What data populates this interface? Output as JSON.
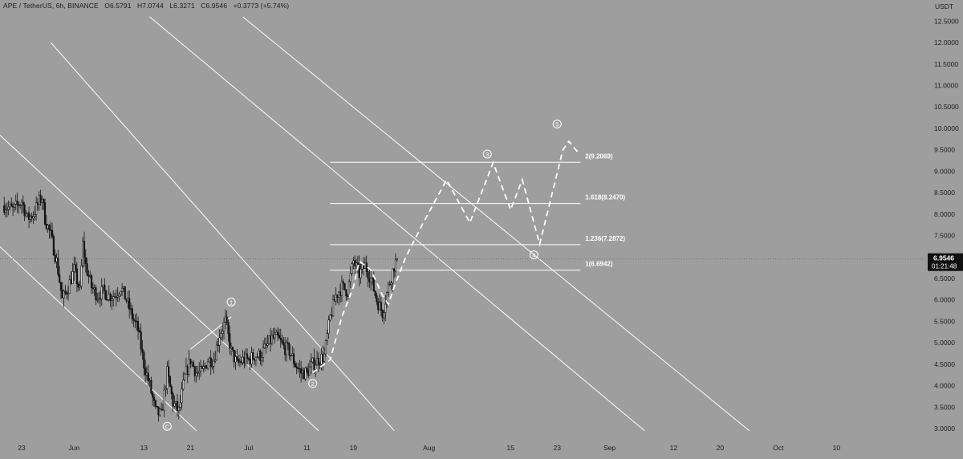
{
  "header": {
    "symbol": "APE / TetherUS, 6h, BINANCE",
    "open": "O6.5791",
    "high": "H7.0744",
    "low": "L6.3271",
    "close": "C6.9546",
    "change": "+0.3773 (+5.74%)"
  },
  "chart_data": {
    "type": "candlestick",
    "currency_label": "USDT",
    "y_ticks": [
      "12.5000",
      "12.0000",
      "11.5000",
      "11.0000",
      "10.5000",
      "10.0000",
      "9.5000",
      "9.0000",
      "8.5000",
      "8.0000",
      "7.5000",
      "7.0000",
      "6.5000",
      "6.0000",
      "5.5000",
      "5.0000",
      "4.5000",
      "4.0000",
      "3.5000",
      "3.0000"
    ],
    "ylim": [
      2.9,
      12.75
    ],
    "x_ticks": [
      {
        "label": "23",
        "day": 0
      },
      {
        "label": "Jun",
        "day": 9
      },
      {
        "label": "13",
        "day": 21
      },
      {
        "label": "21",
        "day": 29
      },
      {
        "label": "Jul",
        "day": 39
      },
      {
        "label": "11",
        "day": 49
      },
      {
        "label": "19",
        "day": 57
      },
      {
        "label": "Aug",
        "day": 70
      },
      {
        "label": "15",
        "day": 84
      },
      {
        "label": "23",
        "day": 92
      },
      {
        "label": "Sep",
        "day": 101
      },
      {
        "label": "12",
        "day": 112
      },
      {
        "label": "20",
        "day": 120
      },
      {
        "label": "Oct",
        "day": 130
      },
      {
        "label": "10",
        "day": 140
      }
    ],
    "x_axis_start": "May 23",
    "last_price": "6.9546",
    "countdown": "01:21:48",
    "price_path": [
      [
        -3,
        8.2
      ],
      [
        -1.5,
        8.1
      ],
      [
        0,
        8.3
      ],
      [
        1,
        7.9
      ],
      [
        2,
        8.0
      ],
      [
        3,
        8.3
      ],
      [
        3.5,
        8.4
      ],
      [
        4,
        7.9
      ],
      [
        5,
        7.5
      ],
      [
        6,
        6.9
      ],
      [
        7,
        6.0
      ],
      [
        8,
        6.3
      ],
      [
        9,
        6.7
      ],
      [
        10,
        6.2
      ],
      [
        10.5,
        7.3
      ],
      [
        11,
        6.8
      ],
      [
        12,
        6.3
      ],
      [
        13,
        6.1
      ],
      [
        14,
        6.2
      ],
      [
        15,
        6.1
      ],
      [
        16,
        6.1
      ],
      [
        17,
        6.3
      ],
      [
        18,
        6.0
      ],
      [
        19,
        5.6
      ],
      [
        20,
        5.3
      ],
      [
        21,
        4.5
      ],
      [
        22,
        4.0
      ],
      [
        23,
        3.4
      ],
      [
        24,
        3.3
      ],
      [
        25,
        4.3
      ],
      [
        26,
        3.6
      ],
      [
        27,
        3.4
      ],
      [
        28,
        4.2
      ],
      [
        29,
        4.6
      ],
      [
        30,
        4.3
      ],
      [
        31,
        4.3
      ],
      [
        32,
        4.6
      ],
      [
        33,
        4.6
      ],
      [
        34,
        5.2
      ],
      [
        35,
        5.5
      ],
      [
        36,
        4.8
      ],
      [
        37,
        4.5
      ],
      [
        38,
        4.6
      ],
      [
        39,
        4.6
      ],
      [
        40,
        4.7
      ],
      [
        41,
        4.7
      ],
      [
        42,
        4.9
      ],
      [
        43,
        5.1
      ],
      [
        44,
        5.1
      ],
      [
        45,
        4.9
      ],
      [
        46,
        4.8
      ],
      [
        47,
        4.5
      ],
      [
        48,
        4.3
      ],
      [
        49,
        4.3
      ],
      [
        50,
        4.5
      ],
      [
        51,
        4.6
      ],
      [
        52,
        4.7
      ],
      [
        53,
        5.6
      ],
      [
        54,
        6.1
      ],
      [
        55,
        6.3
      ],
      [
        56,
        6.2
      ],
      [
        57,
        6.9
      ],
      [
        58,
        6.6
      ],
      [
        59,
        6.8
      ],
      [
        60,
        6.5
      ],
      [
        61,
        6.0
      ],
      [
        62,
        5.7
      ],
      [
        63,
        6.3
      ],
      [
        64,
        6.8
      ],
      [
        64.5,
        6.95
      ]
    ],
    "channel_lines": [
      {
        "name": "channel-line-1",
        "from": [
          -5,
          7.4
        ],
        "to": [
          30,
          2.95
        ]
      },
      {
        "name": "channel-line-2",
        "from": [
          -5,
          10.0
        ],
        "to": [
          51,
          2.95
        ]
      },
      {
        "name": "channel-line-3",
        "from": [
          5,
          12.0
        ],
        "to": [
          64,
          2.95
        ]
      },
      {
        "name": "channel-line-4",
        "from": [
          22,
          12.6
        ],
        "to": [
          107,
          2.95
        ]
      },
      {
        "name": "channel-line-5",
        "from": [
          38,
          12.6
        ],
        "to": [
          125,
          2.95
        ]
      },
      {
        "name": "wave-1-left-line",
        "from": [
          29,
          4.85
        ],
        "to": [
          36,
          5.6
        ]
      }
    ],
    "fib_levels": [
      {
        "ratio": "2",
        "value": "9.2069",
        "price": 9.2069
      },
      {
        "ratio": "1.618",
        "value": "8.2470",
        "price": 8.247
      },
      {
        "ratio": "1.236",
        "value": "7.2872",
        "price": 7.2872
      },
      {
        "ratio": "1",
        "value": "6.6942",
        "price": 6.6942
      }
    ],
    "fib_range": [
      53,
      96
    ],
    "projection_path": [
      [
        50,
        4.3
      ],
      [
        53,
        4.6
      ],
      [
        55,
        5.6
      ],
      [
        57,
        6.3
      ],
      [
        58,
        6.9
      ],
      [
        60,
        6.7
      ],
      [
        62,
        6.1
      ],
      [
        63,
        5.9
      ],
      [
        64,
        6.3
      ],
      [
        66,
        7.0
      ],
      [
        69,
        7.8
      ],
      [
        73,
        8.8
      ],
      [
        77,
        7.8
      ],
      [
        81,
        9.2
      ],
      [
        84,
        8.1
      ],
      [
        86,
        8.8
      ],
      [
        89,
        7.3
      ],
      [
        93,
        9.5
      ],
      [
        94,
        9.7
      ],
      [
        95.5,
        9.45
      ]
    ],
    "wave_labels": [
      {
        "label": "1",
        "day": 36,
        "price": 5.95
      },
      {
        "label": "2",
        "day": 50,
        "price": 4.05
      },
      {
        "label": "3",
        "day": 80,
        "price": 9.4
      },
      {
        "label": "4",
        "day": 88,
        "price": 7.05
      },
      {
        "label": "5",
        "day": 92,
        "price": 10.1
      },
      {
        "label": "C",
        "day": 25,
        "price": 3.05
      }
    ],
    "colors": {
      "background": "#9e9e9e",
      "candle": "#141414",
      "lines": "#ffffff",
      "price_tag": "#111111",
      "text": "#1c1c1c"
    }
  }
}
